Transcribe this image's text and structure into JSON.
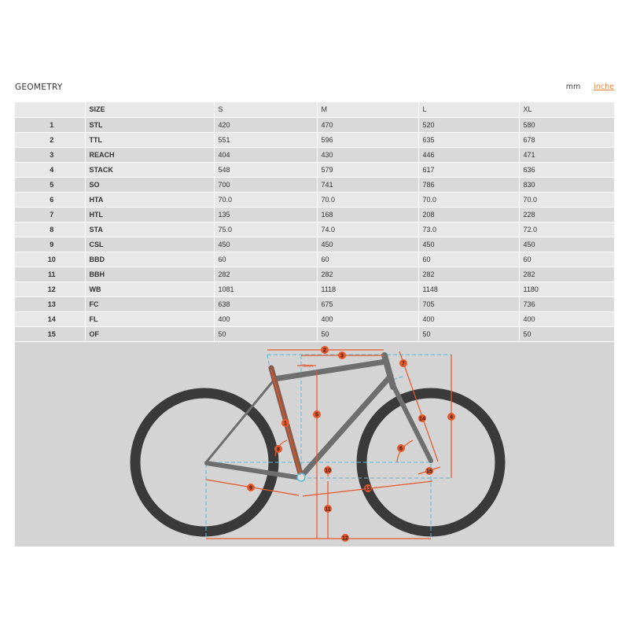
{
  "title": "GEOMETRY",
  "units": {
    "mm": "mm",
    "inches": "inche"
  },
  "table": {
    "header": [
      "",
      "SIZE",
      "S",
      "M",
      "L",
      "XL"
    ],
    "rows": [
      [
        "1",
        "STL",
        "420",
        "470",
        "520",
        "580"
      ],
      [
        "2",
        "TTL",
        "551",
        "596",
        "635",
        "678"
      ],
      [
        "3",
        "REACH",
        "404",
        "430",
        "446",
        "471"
      ],
      [
        "4",
        "STACK",
        "548",
        "579",
        "617",
        "636"
      ],
      [
        "5",
        "SO",
        "700",
        "741",
        "786",
        "830"
      ],
      [
        "6",
        "HTA",
        "70.0",
        "70.0",
        "70.0",
        "70.0"
      ],
      [
        "7",
        "HTL",
        "135",
        "168",
        "208",
        "228"
      ],
      [
        "8",
        "STA",
        "75.0",
        "74.0",
        "73.0",
        "72.0"
      ],
      [
        "9",
        "CSL",
        "450",
        "450",
        "450",
        "450"
      ],
      [
        "10",
        "BBD",
        "60",
        "60",
        "60",
        "60"
      ],
      [
        "11",
        "BBH",
        "282",
        "282",
        "282",
        "282"
      ],
      [
        "12",
        "WB",
        "1081",
        "1118",
        "1148",
        "1180"
      ],
      [
        "13",
        "FC",
        "638",
        "675",
        "705",
        "736"
      ],
      [
        "14",
        "FL",
        "400",
        "400",
        "400",
        "400"
      ],
      [
        "15",
        "OF",
        "50",
        "50",
        "50",
        "50"
      ]
    ]
  },
  "diagram": {
    "offset_label": "70mm",
    "markers": [
      "1",
      "2",
      "3",
      "4",
      "5",
      "6",
      "7",
      "8",
      "9",
      "10",
      "11",
      "12",
      "13",
      "14",
      "15"
    ]
  },
  "colors": {
    "dimension": "#e8572a",
    "guide": "#5bb8d6",
    "frame": "#6e6e6e",
    "tire": "#3a3a3a",
    "link": "#e8833a"
  }
}
